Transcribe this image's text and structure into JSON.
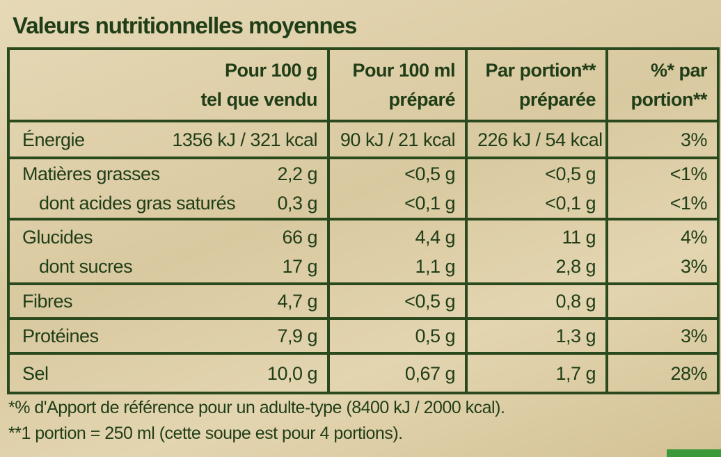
{
  "title": "Valeurs nutritionnelles moyennes",
  "table": {
    "header": [
      [
        "Pour 100 g",
        "tel que vendu"
      ],
      [
        "Pour 100 ml",
        "préparé"
      ],
      [
        "Par portion**",
        "préparée"
      ],
      [
        "%* par",
        "portion**"
      ]
    ],
    "groups": [
      [
        [
          "Énergie",
          "1356 kJ / 321 kcal",
          "90 kJ / 21 kcal",
          "226 kJ / 54 kcal",
          "3%"
        ]
      ],
      [
        [
          "Matières grasses",
          "2,2 g",
          "<0,5 g",
          "<0,5 g",
          "<1%"
        ],
        [
          "dont acides gras saturés",
          "0,3 g",
          "<0,1 g",
          "<0,1 g",
          "<1%"
        ]
      ],
      [
        [
          "Glucides",
          "66 g",
          "4,4 g",
          "11 g",
          "4%"
        ],
        [
          "dont sucres",
          "17 g",
          "1,1 g",
          "2,8 g",
          "3%"
        ]
      ],
      [
        [
          "Fibres",
          "4,7 g",
          "<0,5 g",
          "0,8 g",
          null
        ]
      ],
      [
        [
          "Protéines",
          "7,9 g",
          "0,5 g",
          "1,3 g",
          "3%"
        ]
      ],
      [
        [
          "Sel",
          "10,0 g",
          "0,67 g",
          "1,7 g",
          "28%"
        ]
      ]
    ]
  },
  "footnotes": [
    "*% d'Apport de référence pour un adulte-type (8400 kJ / 2000 kcal).",
    "**1 portion = 250 ml (cette soupe est pour 4 portions)."
  ]
}
